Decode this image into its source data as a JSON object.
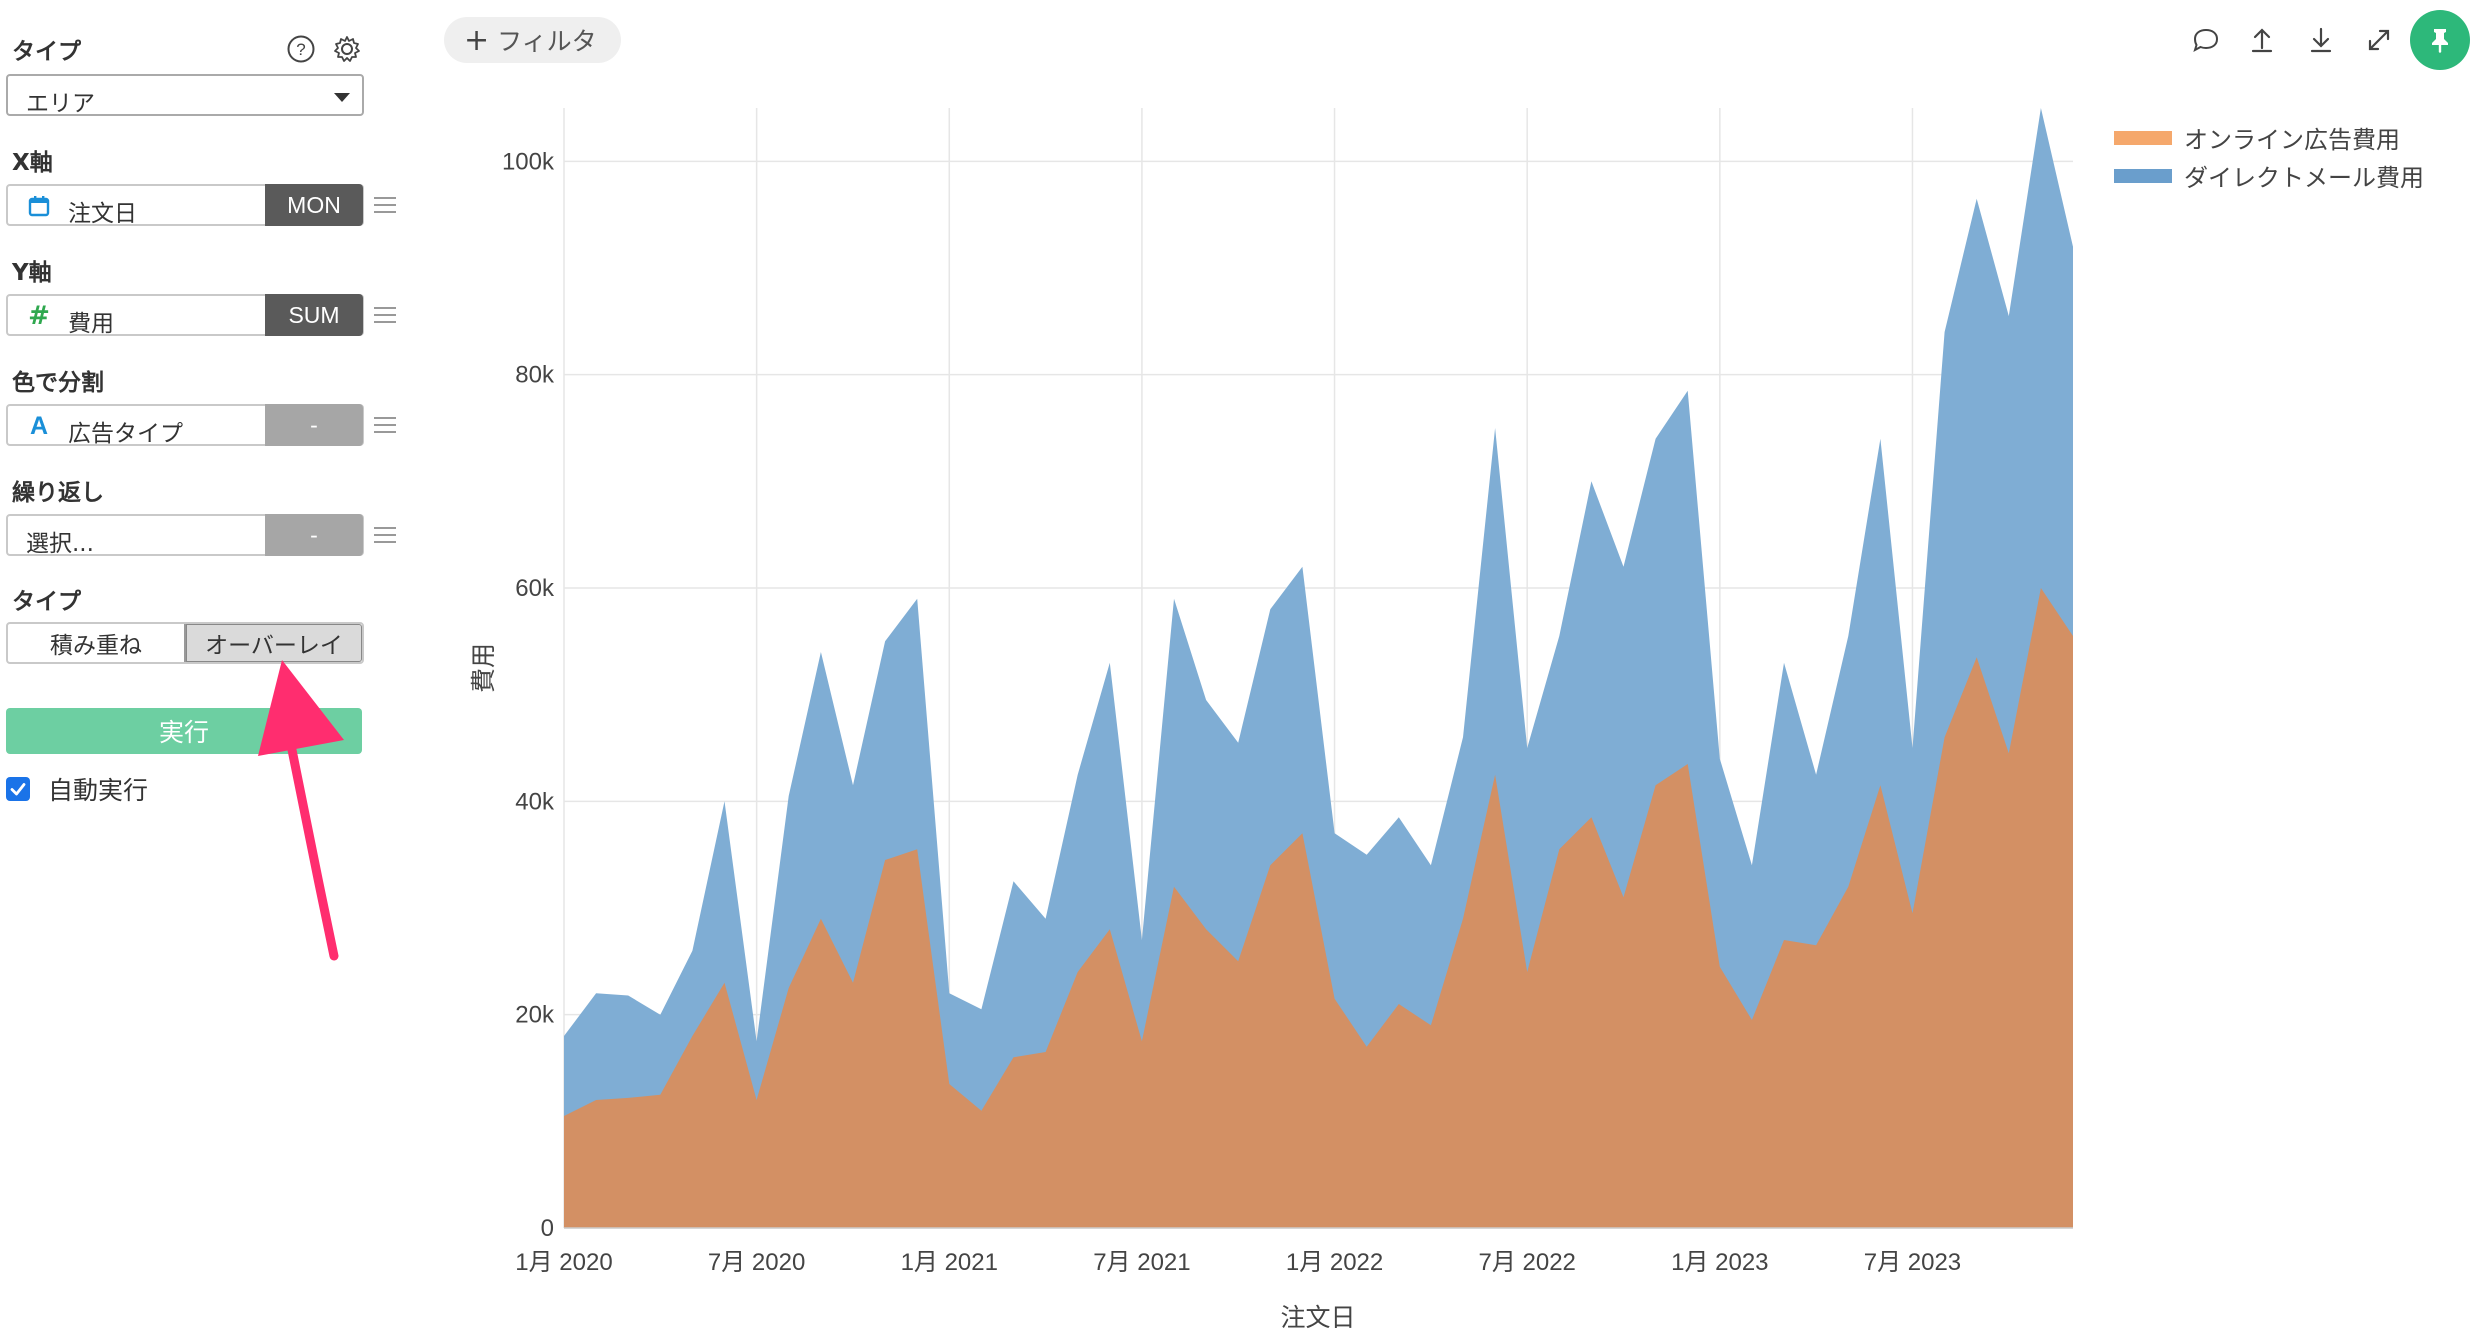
{
  "panel": {
    "type_label": "タイプ",
    "type_value": "エリア",
    "x_label": "X軸",
    "x_field": "注文日",
    "x_agg": "MON",
    "y_label": "Y軸",
    "y_field": "費用",
    "y_agg": "SUM",
    "color_label": "色で分割",
    "color_field": "広告タイプ",
    "color_agg": "-",
    "repeat_label": "繰り返し",
    "repeat_placeholder": "選択...",
    "repeat_agg": "-",
    "mode_label": "タイプ",
    "mode_stack": "積み重ね",
    "mode_overlay": "オーバーレイ",
    "run_label": "実行",
    "auto_run_label": "自動実行",
    "auto_run_checked": true
  },
  "toolbar": {
    "filter_label": "フィルタ",
    "icons": [
      "comment-icon",
      "upload-icon",
      "download-icon",
      "expand-icon",
      "pin-icon"
    ]
  },
  "annotation": {
    "arrow_color": "#ff2d6f"
  },
  "chart_data": {
    "type": "area",
    "mode": "overlay",
    "xlabel": "注文日",
    "ylabel": "費用",
    "ylim": [
      0,
      105000
    ],
    "yticks": [
      "0",
      "20k",
      "40k",
      "60k",
      "80k",
      "100k"
    ],
    "xticks": [
      "1月 2020",
      "7月 2020",
      "1月 2021",
      "7月 2021",
      "1月 2022",
      "7月 2022",
      "1月 2023",
      "7月 2023"
    ],
    "x": [
      "2020-01",
      "2020-02",
      "2020-03",
      "2020-04",
      "2020-05",
      "2020-06",
      "2020-07",
      "2020-08",
      "2020-09",
      "2020-10",
      "2020-11",
      "2020-12",
      "2021-01",
      "2021-02",
      "2021-03",
      "2021-04",
      "2021-05",
      "2021-06",
      "2021-07",
      "2021-08",
      "2021-09",
      "2021-10",
      "2021-11",
      "2021-12",
      "2022-01",
      "2022-02",
      "2022-03",
      "2022-04",
      "2022-05",
      "2022-06",
      "2022-07",
      "2022-08",
      "2022-09",
      "2022-10",
      "2022-11",
      "2022-12",
      "2023-01",
      "2023-02",
      "2023-03",
      "2023-04",
      "2023-05",
      "2023-06",
      "2023-07",
      "2023-08",
      "2023-09",
      "2023-10",
      "2023-11",
      "2023-12"
    ],
    "legend_position": "top-right",
    "grid": true,
    "series": [
      {
        "name": "ダイレクトメール費用",
        "color": "#6a9ecc",
        "values": [
          18000,
          22000,
          21800,
          20000,
          26000,
          40000,
          17500,
          40500,
          54000,
          41500,
          55000,
          59000,
          22000,
          20500,
          32500,
          29000,
          42500,
          53000,
          27000,
          59000,
          49500,
          45500,
          58000,
          62000,
          37000,
          35000,
          38500,
          34000,
          46000,
          75000,
          45000,
          55500,
          70000,
          62000,
          74000,
          78500,
          44000,
          34000,
          53000,
          42500,
          55500,
          74000,
          45000,
          84000,
          96500,
          85500,
          105000,
          92000
        ]
      },
      {
        "name": "オンライン広告費用",
        "color": "#d9895a",
        "values": [
          10500,
          12000,
          12200,
          12500,
          18000,
          23000,
          12000,
          22500,
          29000,
          23000,
          34500,
          35500,
          13500,
          11000,
          16000,
          16500,
          24000,
          28000,
          17500,
          32000,
          28000,
          25000,
          34000,
          37000,
          21500,
          17000,
          21000,
          19000,
          29000,
          42500,
          24000,
          35500,
          38500,
          31000,
          41500,
          43500,
          24500,
          19500,
          27000,
          26500,
          32000,
          41500,
          29500,
          46000,
          53500,
          44500,
          60000,
          55500
        ]
      }
    ]
  }
}
